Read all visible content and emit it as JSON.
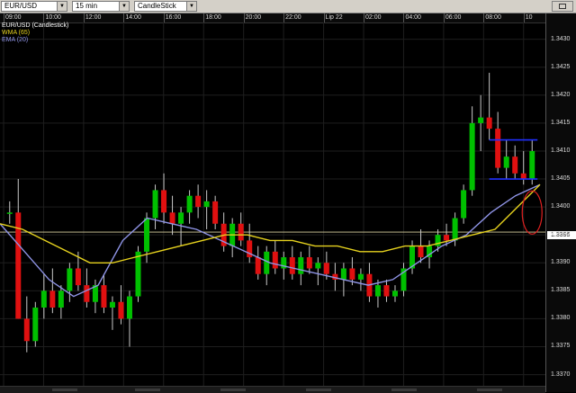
{
  "toolbar": {
    "symbol": "EUR/USD",
    "interval": "15 min",
    "chart_type": "CandleStick"
  },
  "legend": [
    {
      "label": "EUR/USD (Candlestick)",
      "color": "#ffffff"
    },
    {
      "label": "WMA (65)",
      "color": "#e6d21e"
    },
    {
      "label": "EMA (20)",
      "color": "#8f94e6"
    }
  ],
  "time_labels": [
    "09:00",
    "10:00",
    "12:00",
    "14:00",
    "16:00",
    "18:00",
    "20:00",
    "22:00",
    "Lip 22",
    "02:00",
    "04:00",
    "06:00",
    "08:00",
    "10"
  ],
  "price_labels": [
    "1.3430",
    "1.3425",
    "1.3420",
    "1.3415",
    "1.3410",
    "1.3405",
    "1.3400",
    "1.3395",
    "1.3390",
    "1.3385",
    "1.3380",
    "1.3375",
    "1.3370"
  ],
  "current_price": "1.3395",
  "chart_data": {
    "type": "candlestick",
    "ylim": [
      1.3368,
      1.3433
    ],
    "up_color": "#00c000",
    "down_color": "#e01010",
    "horizontal_line": 1.33955,
    "candles": [
      [
        1.3399,
        1.3401,
        1.3397,
        1.3399
      ],
      [
        1.3399,
        1.3405,
        1.338,
        1.338
      ],
      [
        1.338,
        1.3384,
        1.3374,
        1.3376
      ],
      [
        1.3376,
        1.3383,
        1.3375,
        1.3382
      ],
      [
        1.3382,
        1.3388,
        1.338,
        1.3385
      ],
      [
        1.3385,
        1.3389,
        1.3381,
        1.3382
      ],
      [
        1.3382,
        1.3386,
        1.338,
        1.3385
      ],
      [
        1.3385,
        1.339,
        1.3383,
        1.3389
      ],
      [
        1.3389,
        1.3392,
        1.3385,
        1.3386
      ],
      [
        1.3386,
        1.3389,
        1.3382,
        1.3383
      ],
      [
        1.3383,
        1.3387,
        1.3381,
        1.3386
      ],
      [
        1.3386,
        1.3388,
        1.3381,
        1.3382
      ],
      [
        1.3382,
        1.3384,
        1.3378,
        1.3383
      ],
      [
        1.3383,
        1.3386,
        1.3379,
        1.338
      ],
      [
        1.338,
        1.3385,
        1.3375,
        1.3384
      ],
      [
        1.3384,
        1.3393,
        1.3383,
        1.3392
      ],
      [
        1.3392,
        1.3399,
        1.339,
        1.3398
      ],
      [
        1.3398,
        1.3404,
        1.3396,
        1.3403
      ],
      [
        1.3403,
        1.3406,
        1.3397,
        1.3399
      ],
      [
        1.3399,
        1.3402,
        1.3395,
        1.3397
      ],
      [
        1.3397,
        1.34,
        1.3393,
        1.3399
      ],
      [
        1.3399,
        1.3403,
        1.3397,
        1.3402
      ],
      [
        1.3402,
        1.3404,
        1.3398,
        1.34
      ],
      [
        1.34,
        1.3403,
        1.3396,
        1.3401
      ],
      [
        1.3401,
        1.3402,
        1.3396,
        1.3397
      ],
      [
        1.3397,
        1.3399,
        1.3392,
        1.3393
      ],
      [
        1.3393,
        1.3398,
        1.3391,
        1.3397
      ],
      [
        1.3397,
        1.3399,
        1.3393,
        1.3394
      ],
      [
        1.3394,
        1.3397,
        1.339,
        1.3391
      ],
      [
        1.3391,
        1.3393,
        1.3387,
        1.3388
      ],
      [
        1.3388,
        1.3393,
        1.3386,
        1.3392
      ],
      [
        1.3392,
        1.3394,
        1.3388,
        1.3389
      ],
      [
        1.3389,
        1.3392,
        1.3387,
        1.3391
      ],
      [
        1.3391,
        1.3393,
        1.3387,
        1.3388
      ],
      [
        1.3388,
        1.3392,
        1.3386,
        1.3391
      ],
      [
        1.3391,
        1.3393,
        1.3388,
        1.3389
      ],
      [
        1.3389,
        1.3391,
        1.3386,
        1.339
      ],
      [
        1.339,
        1.3392,
        1.3387,
        1.3388
      ],
      [
        1.3388,
        1.339,
        1.3385,
        1.3387
      ],
      [
        1.3387,
        1.339,
        1.3384,
        1.3389
      ],
      [
        1.3389,
        1.3391,
        1.3386,
        1.3387
      ],
      [
        1.3387,
        1.3389,
        1.3385,
        1.3388
      ],
      [
        1.3388,
        1.339,
        1.3383,
        1.3384
      ],
      [
        1.3384,
        1.3387,
        1.3382,
        1.3386
      ],
      [
        1.3386,
        1.3387,
        1.3383,
        1.3384
      ],
      [
        1.3384,
        1.3386,
        1.3383,
        1.3385
      ],
      [
        1.3385,
        1.339,
        1.3384,
        1.3389
      ],
      [
        1.3389,
        1.3394,
        1.3388,
        1.3393
      ],
      [
        1.3393,
        1.3396,
        1.339,
        1.3391
      ],
      [
        1.3391,
        1.3394,
        1.3389,
        1.3393
      ],
      [
        1.3393,
        1.3396,
        1.3392,
        1.3395
      ],
      [
        1.3395,
        1.3397,
        1.3393,
        1.3394
      ],
      [
        1.3394,
        1.3399,
        1.3393,
        1.3398
      ],
      [
        1.3398,
        1.3404,
        1.3397,
        1.3403
      ],
      [
        1.3403,
        1.3418,
        1.3402,
        1.3415
      ],
      [
        1.3415,
        1.342,
        1.341,
        1.3416
      ],
      [
        1.3416,
        1.3424,
        1.3412,
        1.3414
      ],
      [
        1.3414,
        1.3417,
        1.3406,
        1.3407
      ],
      [
        1.3407,
        1.3412,
        1.3405,
        1.3409
      ],
      [
        1.3409,
        1.3411,
        1.3405,
        1.3406
      ],
      [
        1.3406,
        1.341,
        1.3404,
        1.3405
      ],
      [
        1.3405,
        1.3412,
        1.3404,
        1.341
      ]
    ],
    "wma65": [
      1.3397,
      1.3396,
      1.3394,
      1.3392,
      1.339,
      1.339,
      1.3391,
      1.3392,
      1.3393,
      1.3394,
      1.3395,
      1.3395,
      1.3394,
      1.3394,
      1.3393,
      1.3393,
      1.3392,
      1.3392,
      1.3393,
      1.3393,
      1.3394,
      1.3395,
      1.3396,
      1.34,
      1.3404
    ],
    "ema20": [
      1.3397,
      1.3392,
      1.3387,
      1.3384,
      1.3386,
      1.3394,
      1.3398,
      1.3397,
      1.3396,
      1.3394,
      1.3392,
      1.339,
      1.3389,
      1.3388,
      1.3387,
      1.3386,
      1.3387,
      1.339,
      1.3393,
      1.3395,
      1.3399,
      1.3402,
      1.3404
    ]
  }
}
